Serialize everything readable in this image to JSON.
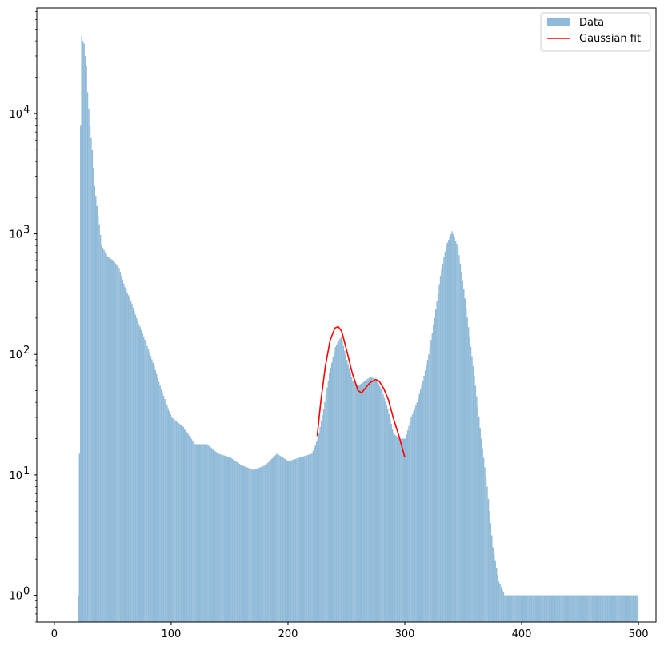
{
  "chart_data": {
    "type": "bar",
    "title": "",
    "xlabel": "",
    "ylabel": "",
    "xlim": [
      -15,
      515
    ],
    "ylim": [
      0.6,
      75000
    ],
    "yscale": "log",
    "grid": false,
    "legend_position": "top-right",
    "x_ticks": [
      0,
      100,
      200,
      300,
      400,
      500
    ],
    "x_tick_labels": [
      "0",
      "100",
      "200",
      "300",
      "400",
      "500"
    ],
    "y_ticks": [
      1,
      10,
      100,
      1000,
      10000
    ],
    "y_tick_labels": [
      "10",
      "10",
      "10",
      "10",
      "10"
    ],
    "y_tick_exponents": [
      "0",
      "1",
      "2",
      "3",
      "4"
    ],
    "series": [
      {
        "name": "Data",
        "kind": "histogram",
        "color": "#8fbad8",
        "bin_width": 1,
        "bin_starts_x": [
          20,
          21,
          22,
          23,
          24,
          25,
          26,
          27,
          28,
          30,
          32,
          34,
          36,
          38,
          40,
          45,
          50,
          55,
          60,
          65,
          70,
          75,
          80,
          85,
          90,
          95,
          100,
          110,
          120,
          130,
          140,
          150,
          160,
          170,
          180,
          190,
          200,
          210,
          220,
          225,
          230,
          235,
          240,
          245,
          250,
          255,
          260,
          265,
          270,
          275,
          280,
          285,
          290,
          295,
          300,
          305,
          310,
          315,
          320,
          325,
          330,
          335,
          340,
          345,
          350,
          355,
          360,
          365,
          370,
          375,
          380,
          385,
          390,
          395,
          400,
          410,
          420,
          430,
          440,
          450,
          460,
          470,
          480,
          490,
          499
        ],
        "counts": [
          1,
          15,
          8000,
          44000,
          40000,
          38000,
          30000,
          25000,
          15000,
          8000,
          5000,
          2500,
          1700,
          1200,
          800,
          650,
          600,
          520,
          360,
          280,
          200,
          150,
          110,
          80,
          55,
          40,
          30,
          25,
          18,
          18,
          15,
          14,
          12,
          11,
          12,
          15,
          13,
          14,
          15,
          20,
          35,
          70,
          115,
          140,
          90,
          60,
          55,
          60,
          65,
          62,
          50,
          35,
          22,
          20,
          20,
          30,
          40,
          60,
          100,
          200,
          450,
          800,
          1050,
          780,
          350,
          140,
          55,
          20,
          8,
          2.5,
          1.3,
          1,
          1,
          1,
          1,
          1,
          1,
          1,
          1,
          1,
          1,
          1,
          1,
          1,
          1
        ]
      },
      {
        "name": "Gaussian fit",
        "kind": "line",
        "color": "#ff0000",
        "x": [
          225,
          228,
          232,
          236,
          240,
          243,
          246,
          250,
          255,
          260,
          263,
          266,
          270,
          275,
          278,
          282,
          286,
          290,
          295,
          300
        ],
        "y": [
          21,
          40,
          80,
          130,
          165,
          170,
          155,
          110,
          70,
          50,
          48,
          52,
          58,
          62,
          60,
          52,
          42,
          30,
          21,
          14
        ]
      }
    ]
  }
}
